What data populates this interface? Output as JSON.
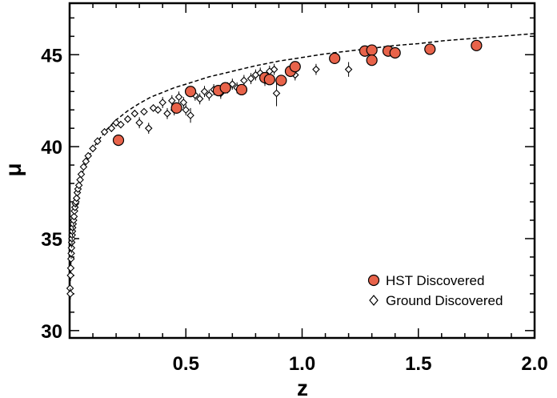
{
  "chart_data": {
    "type": "scatter",
    "title": "",
    "xlabel": "z",
    "ylabel": "μ",
    "xlim": [
      0,
      2.0
    ],
    "ylim": [
      29.6,
      47.8
    ],
    "xticks": [
      0.5,
      1.0,
      1.5,
      2.0
    ],
    "xtick_labels": [
      "0.5",
      "1.0",
      "1.5",
      "2.0"
    ],
    "yticks": [
      30,
      35,
      40,
      45
    ],
    "ytick_labels": [
      "30",
      "35",
      "40",
      "45"
    ],
    "grid": false,
    "legend_position": "bottom-right",
    "colors": {
      "hst_fill": "#e8634a",
      "hst_stroke": "#000000",
      "ground_stroke": "#000000",
      "fit_line": "#000000"
    },
    "series": [
      {
        "name": "HST Discovered",
        "marker": "circle",
        "points": [
          {
            "x": 0.21,
            "y": 40.35,
            "err": 0.15
          },
          {
            "x": 0.46,
            "y": 42.1,
            "err": 0.2
          },
          {
            "x": 0.52,
            "y": 43.0,
            "err": 0.2
          },
          {
            "x": 0.64,
            "y": 43.05,
            "err": 0.2
          },
          {
            "x": 0.67,
            "y": 43.2,
            "err": 0.2
          },
          {
            "x": 0.74,
            "y": 43.1,
            "err": 0.2
          },
          {
            "x": 0.84,
            "y": 43.75,
            "err": 0.2
          },
          {
            "x": 0.86,
            "y": 43.65,
            "err": 0.2
          },
          {
            "x": 0.91,
            "y": 43.6,
            "err": 0.2
          },
          {
            "x": 0.95,
            "y": 44.1,
            "err": 0.2
          },
          {
            "x": 0.97,
            "y": 44.35,
            "err": 0.2
          },
          {
            "x": 1.14,
            "y": 44.8,
            "err": 0.2
          },
          {
            "x": 1.27,
            "y": 45.2,
            "err": 0.2
          },
          {
            "x": 1.3,
            "y": 45.25,
            "err": 0.2
          },
          {
            "x": 1.3,
            "y": 44.7,
            "err": 0.2
          },
          {
            "x": 1.37,
            "y": 45.2,
            "err": 0.2
          },
          {
            "x": 1.4,
            "y": 45.1,
            "err": 0.25
          },
          {
            "x": 1.55,
            "y": 45.3,
            "err": 0.2
          },
          {
            "x": 1.75,
            "y": 45.5,
            "err": 0.3
          }
        ]
      },
      {
        "name": "Ground Discovered",
        "marker": "diamond",
        "points": [
          {
            "x": 0.002,
            "y": 32.3,
            "err": 0.3
          },
          {
            "x": 0.003,
            "y": 32.0,
            "err": 0.3
          },
          {
            "x": 0.004,
            "y": 33.0,
            "err": 0.3
          },
          {
            "x": 0.005,
            "y": 33.4,
            "err": 0.3
          },
          {
            "x": 0.006,
            "y": 33.9,
            "err": 0.3
          },
          {
            "x": 0.007,
            "y": 34.2,
            "err": 0.3
          },
          {
            "x": 0.008,
            "y": 34.5,
            "err": 0.3
          },
          {
            "x": 0.009,
            "y": 34.8,
            "err": 0.3
          },
          {
            "x": 0.01,
            "y": 35.0,
            "err": 0.3
          },
          {
            "x": 0.011,
            "y": 35.2,
            "err": 0.3
          },
          {
            "x": 0.012,
            "y": 35.4,
            "err": 0.3
          },
          {
            "x": 0.013,
            "y": 35.6,
            "err": 0.3
          },
          {
            "x": 0.015,
            "y": 35.8,
            "err": 0.3
          },
          {
            "x": 0.017,
            "y": 36.0,
            "err": 0.3
          },
          {
            "x": 0.019,
            "y": 36.2,
            "err": 0.2
          },
          {
            "x": 0.021,
            "y": 36.5,
            "err": 0.2
          },
          {
            "x": 0.023,
            "y": 36.7,
            "err": 0.2
          },
          {
            "x": 0.025,
            "y": 36.9,
            "err": 0.2
          },
          {
            "x": 0.027,
            "y": 37.0,
            "err": 0.2
          },
          {
            "x": 0.03,
            "y": 37.2,
            "err": 0.2
          },
          {
            "x": 0.033,
            "y": 37.5,
            "err": 0.2
          },
          {
            "x": 0.036,
            "y": 37.7,
            "err": 0.2
          },
          {
            "x": 0.04,
            "y": 37.9,
            "err": 0.2
          },
          {
            "x": 0.045,
            "y": 38.2,
            "err": 0.2
          },
          {
            "x": 0.05,
            "y": 38.5,
            "err": 0.2
          },
          {
            "x": 0.06,
            "y": 38.9,
            "err": 0.2
          },
          {
            "x": 0.07,
            "y": 39.2,
            "err": 0.2
          },
          {
            "x": 0.08,
            "y": 39.5,
            "err": 0.2
          },
          {
            "x": 0.1,
            "y": 39.9,
            "err": 0.2
          },
          {
            "x": 0.12,
            "y": 40.3,
            "err": 0.2
          },
          {
            "x": 0.15,
            "y": 40.8,
            "err": 0.2
          },
          {
            "x": 0.18,
            "y": 41.0,
            "err": 0.2
          },
          {
            "x": 0.2,
            "y": 41.3,
            "err": 0.2
          },
          {
            "x": 0.22,
            "y": 41.2,
            "err": 0.2
          },
          {
            "x": 0.25,
            "y": 41.5,
            "err": 0.2
          },
          {
            "x": 0.28,
            "y": 41.8,
            "err": 0.2
          },
          {
            "x": 0.3,
            "y": 41.3,
            "err": 0.3
          },
          {
            "x": 0.32,
            "y": 41.9,
            "err": 0.2
          },
          {
            "x": 0.34,
            "y": 41.0,
            "err": 0.3
          },
          {
            "x": 0.36,
            "y": 42.1,
            "err": 0.2
          },
          {
            "x": 0.38,
            "y": 42.0,
            "err": 0.2
          },
          {
            "x": 0.4,
            "y": 42.4,
            "err": 0.3
          },
          {
            "x": 0.42,
            "y": 41.8,
            "err": 0.3
          },
          {
            "x": 0.44,
            "y": 42.5,
            "err": 0.3
          },
          {
            "x": 0.45,
            "y": 42.0,
            "err": 0.3
          },
          {
            "x": 0.47,
            "y": 42.7,
            "err": 0.3
          },
          {
            "x": 0.49,
            "y": 42.4,
            "err": 0.3
          },
          {
            "x": 0.5,
            "y": 42.0,
            "err": 0.3
          },
          {
            "x": 0.52,
            "y": 41.7,
            "err": 0.4
          },
          {
            "x": 0.54,
            "y": 42.8,
            "err": 0.3
          },
          {
            "x": 0.56,
            "y": 42.6,
            "err": 0.3
          },
          {
            "x": 0.58,
            "y": 43.0,
            "err": 0.3
          },
          {
            "x": 0.6,
            "y": 42.8,
            "err": 0.3
          },
          {
            "x": 0.62,
            "y": 43.1,
            "err": 0.3
          },
          {
            "x": 0.65,
            "y": 42.9,
            "err": 0.3
          },
          {
            "x": 0.68,
            "y": 43.2,
            "err": 0.3
          },
          {
            "x": 0.7,
            "y": 43.4,
            "err": 0.3
          },
          {
            "x": 0.72,
            "y": 43.2,
            "err": 0.3
          },
          {
            "x": 0.75,
            "y": 43.6,
            "err": 0.3
          },
          {
            "x": 0.78,
            "y": 43.7,
            "err": 0.3
          },
          {
            "x": 0.8,
            "y": 43.9,
            "err": 0.3
          },
          {
            "x": 0.82,
            "y": 44.0,
            "err": 0.3
          },
          {
            "x": 0.84,
            "y": 43.6,
            "err": 0.3
          },
          {
            "x": 0.86,
            "y": 44.1,
            "err": 0.3
          },
          {
            "x": 0.88,
            "y": 44.2,
            "err": 0.3
          },
          {
            "x": 0.89,
            "y": 42.9,
            "err": 0.7
          },
          {
            "x": 0.97,
            "y": 43.9,
            "err": 0.3
          },
          {
            "x": 1.06,
            "y": 44.2,
            "err": 0.3
          },
          {
            "x": 1.2,
            "y": 44.2,
            "err": 0.4
          }
        ]
      }
    ],
    "fit_curve": {
      "name": "model",
      "style": "dashed",
      "points": [
        [
          0.01,
          34.7
        ],
        [
          0.02,
          36.3
        ],
        [
          0.03,
          37.2
        ],
        [
          0.05,
          38.4
        ],
        [
          0.07,
          39.1
        ],
        [
          0.1,
          39.9
        ],
        [
          0.15,
          40.8
        ],
        [
          0.2,
          41.45
        ],
        [
          0.25,
          41.95
        ],
        [
          0.3,
          42.35
        ],
        [
          0.35,
          42.7
        ],
        [
          0.4,
          42.95
        ],
        [
          0.45,
          43.2
        ],
        [
          0.5,
          43.4
        ],
        [
          0.6,
          43.8
        ],
        [
          0.7,
          44.1
        ],
        [
          0.8,
          44.4
        ],
        [
          0.9,
          44.65
        ],
        [
          1.0,
          44.85
        ],
        [
          1.1,
          45.05
        ],
        [
          1.2,
          45.2
        ],
        [
          1.3,
          45.35
        ],
        [
          1.4,
          45.5
        ],
        [
          1.5,
          45.6
        ],
        [
          1.6,
          45.75
        ],
        [
          1.7,
          45.85
        ],
        [
          1.8,
          45.95
        ],
        [
          1.9,
          46.05
        ],
        [
          2.0,
          46.15
        ]
      ]
    }
  }
}
